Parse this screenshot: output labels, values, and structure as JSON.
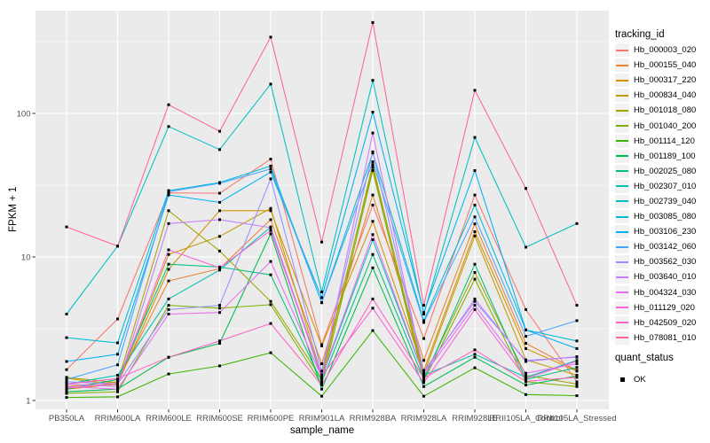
{
  "chart_data": {
    "type": "line",
    "title": "",
    "xlabel": "sample_name",
    "ylabel": "FPKM + 1",
    "y_scale": "log10",
    "y_ticks": [
      "1",
      "10",
      "100"
    ],
    "y_tick_values": [
      1,
      10,
      100
    ],
    "y_minor_values": [
      3.162,
      31.62,
      316.2
    ],
    "ylim": [
      0.87,
      520
    ],
    "grid": true,
    "legend_position": "right",
    "panel_bg": "#EBEBEB",
    "grid_color": "#FFFFFF",
    "point_color": "#000000",
    "tick_label_color": "#4D4D4D",
    "categories": [
      "PB350LA",
      "RRIM600LA",
      "RRIM600LE",
      "RRIM600SE",
      "RRIM600PE",
      "RRIM901LA",
      "RRIM928BA",
      "RRIM928LA",
      "RRIM928LE",
      "RRII105LA_Control",
      "RRII105LA_Stressed"
    ],
    "series": [
      {
        "name": "Hb_000003_020",
        "color": "#F8766D",
        "values": [
          1.64,
          3.7,
          28,
          27.8,
          48,
          2.45,
          23,
          2.7,
          27,
          4.3,
          1.35
        ]
      },
      {
        "name": "Hb_000155_040",
        "color": "#EA8331",
        "values": [
          1.25,
          1.35,
          6.8,
          8.3,
          18.2,
          1.8,
          27,
          1.9,
          17,
          2.5,
          1.62
        ]
      },
      {
        "name": "Hb_000317_220",
        "color": "#D89000",
        "values": [
          1.2,
          1.3,
          8.2,
          21,
          21,
          2.4,
          17.7,
          1.62,
          15,
          2.3,
          1.6
        ]
      },
      {
        "name": "Hb_000834_040",
        "color": "#C09B00",
        "values": [
          1.43,
          1.28,
          10.4,
          13.9,
          21.8,
          1.5,
          42,
          1.53,
          14,
          1.92,
          1.5
        ]
      },
      {
        "name": "Hb_001018_080",
        "color": "#A3A500",
        "values": [
          1.45,
          1.33,
          21,
          11,
          4.9,
          1.41,
          44,
          1.45,
          7.8,
          1.5,
          1.3
        ]
      },
      {
        "name": "Hb_001040_200",
        "color": "#7CAE00",
        "values": [
          1.12,
          1.15,
          4.6,
          4.4,
          4.65,
          1.3,
          40,
          1.37,
          7,
          1.35,
          1.25
        ]
      },
      {
        "name": "Hb_001114_120",
        "color": "#39B600",
        "values": [
          1.05,
          1.06,
          1.53,
          1.74,
          2.15,
          1.07,
          3.07,
          1.07,
          1.69,
          1.1,
          1.08
        ]
      },
      {
        "name": "Hb_001189_100",
        "color": "#00BB4E",
        "values": [
          1.15,
          1.2,
          2,
          2.5,
          14.5,
          1.2,
          8.4,
          1.25,
          2,
          1.28,
          1.48
        ]
      },
      {
        "name": "Hb_002025_080",
        "color": "#00C081",
        "values": [
          1.2,
          1.4,
          8.9,
          8.5,
          7.5,
          1.35,
          10.4,
          1.4,
          8.9,
          1.4,
          1.7
        ]
      },
      {
        "name": "Hb_002307_010",
        "color": "#00C0AF",
        "values": [
          1.3,
          1.5,
          5.1,
          8.1,
          16.2,
          1.44,
          13.2,
          1.5,
          2.1,
          1.45,
          1.9
        ]
      },
      {
        "name": "Hb_002739_040",
        "color": "#00BFC4",
        "values": [
          4,
          11.9,
          81,
          56,
          160,
          5.7,
          170,
          4,
          68,
          11.7,
          17.1
        ]
      },
      {
        "name": "Hb_003085_080",
        "color": "#00BCD8",
        "values": [
          2.74,
          2.52,
          29,
          33,
          43,
          4.8,
          53,
          3.6,
          23,
          3.1,
          2.6
        ]
      },
      {
        "name": "Hb_003106_230",
        "color": "#00B0F6",
        "values": [
          1.87,
          2.1,
          27,
          24,
          39,
          5.2,
          102,
          4.1,
          40,
          3.1,
          2.3
        ]
      },
      {
        "name": "Hb_003142_060",
        "color": "#47A5FF",
        "values": [
          1.4,
          1.77,
          28.5,
          32.6,
          41,
          4.8,
          46,
          3.5,
          19,
          2.8,
          3.6
        ]
      },
      {
        "name": "Hb_003562_030",
        "color": "#9590FF",
        "values": [
          1.35,
          1.3,
          4.3,
          4.6,
          35,
          1.6,
          54,
          1.6,
          4.9,
          1.9,
          2
        ]
      },
      {
        "name": "Hb_003640_010",
        "color": "#C77CFF",
        "values": [
          1.3,
          1.25,
          17.1,
          18.2,
          16,
          1.51,
          73,
          1.55,
          5.1,
          1.87,
          2.02
        ]
      },
      {
        "name": "Hb_004324_030",
        "color": "#E76BF3",
        "values": [
          1.25,
          1.2,
          4,
          4.1,
          9.3,
          1.45,
          14.3,
          1.5,
          4.6,
          1.55,
          1.8
        ]
      },
      {
        "name": "Hb_011129_020",
        "color": "#FA62DB",
        "values": [
          1.22,
          1.32,
          11.2,
          8.4,
          15.3,
          1.48,
          4.4,
          1.33,
          4.3,
          1.42,
          1.88
        ]
      },
      {
        "name": "Hb_042509_020",
        "color": "#FF61C3",
        "values": [
          1.3,
          1.42,
          2,
          2.6,
          3.44,
          1.28,
          5.1,
          1.43,
          2.25,
          1.36,
          1.45
        ]
      },
      {
        "name": "Hb_078081_010",
        "color": "#FF639C",
        "values": [
          16.2,
          11.9,
          115,
          75,
          340,
          12.7,
          430,
          4.6,
          145,
          30,
          4.6
        ]
      }
    ]
  },
  "legend": {
    "tracking_title": "tracking_id",
    "quant_title": "quant_status",
    "quant_items": [
      {
        "label": "OK",
        "symbol": "black-square"
      }
    ]
  }
}
